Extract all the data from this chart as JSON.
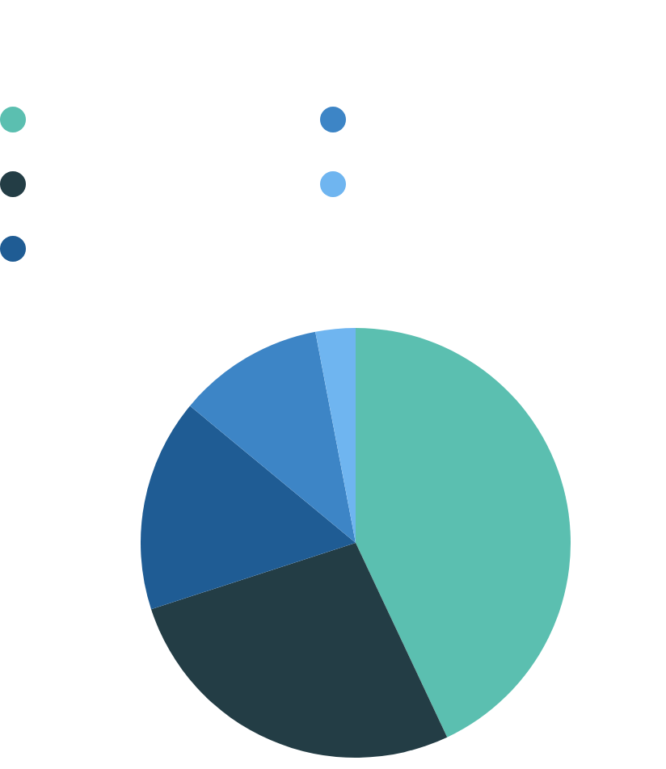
{
  "chart_data": {
    "type": "pie",
    "categories": [
      null,
      null,
      null,
      null,
      null
    ],
    "values": [
      43,
      27,
      16,
      11,
      3
    ],
    "colors": [
      "#5bbfb0",
      "#233d45",
      "#1f5c94",
      "#3d85c6",
      "#6fb5f0"
    ]
  }
}
